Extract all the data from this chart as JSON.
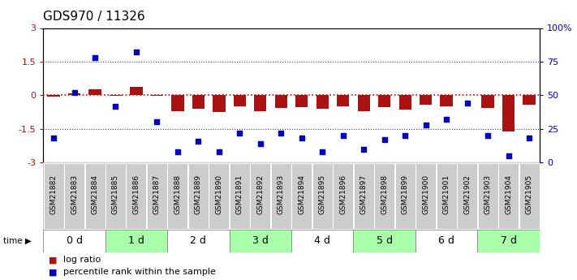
{
  "title": "GDS970 / 11326",
  "samples": [
    "GSM21882",
    "GSM21883",
    "GSM21884",
    "GSM21885",
    "GSM21886",
    "GSM21887",
    "GSM21888",
    "GSM21889",
    "GSM21890",
    "GSM21891",
    "GSM21892",
    "GSM21893",
    "GSM21894",
    "GSM21895",
    "GSM21896",
    "GSM21897",
    "GSM21898",
    "GSM21899",
    "GSM21900",
    "GSM21901",
    "GSM21902",
    "GSM21903",
    "GSM21904",
    "GSM21905"
  ],
  "log_ratio": [
    -0.05,
    0.1,
    0.28,
    -0.04,
    0.38,
    -0.04,
    -0.72,
    -0.6,
    -0.75,
    -0.5,
    -0.72,
    -0.58,
    -0.52,
    -0.62,
    -0.5,
    -0.7,
    -0.53,
    -0.65,
    -0.42,
    -0.48,
    0.01,
    -0.58,
    -1.62,
    -0.42
  ],
  "percentile_rank": [
    18,
    52,
    78,
    42,
    82,
    30,
    8,
    16,
    8,
    22,
    14,
    22,
    18,
    8,
    20,
    10,
    17,
    20,
    28,
    32,
    44,
    20,
    5,
    18
  ],
  "time_groups": [
    {
      "label": "0 d",
      "start": 0,
      "end": 2,
      "color": "#ffffff"
    },
    {
      "label": "1 d",
      "start": 2,
      "end": 5,
      "color": "#aaffaa"
    },
    {
      "label": "2 d",
      "start": 5,
      "end": 8,
      "color": "#ffffff"
    },
    {
      "label": "3 d",
      "start": 8,
      "end": 11,
      "color": "#aaffaa"
    },
    {
      "label": "4 d",
      "start": 11,
      "end": 14,
      "color": "#ffffff"
    },
    {
      "label": "5 d",
      "start": 14,
      "end": 17,
      "color": "#aaffaa"
    },
    {
      "label": "6 d",
      "start": 17,
      "end": 20,
      "color": "#ffffff"
    },
    {
      "label": "7 d",
      "start": 20,
      "end": 24,
      "color": "#aaffaa"
    }
  ],
  "time_groups_equal": [
    {
      "label": "0 d",
      "idx": 0,
      "color": "#ffffff"
    },
    {
      "label": "1 d",
      "idx": 1,
      "color": "#aaffaa"
    },
    {
      "label": "2 d",
      "idx": 2,
      "color": "#ffffff"
    },
    {
      "label": "3 d",
      "idx": 3,
      "color": "#aaffaa"
    },
    {
      "label": "4 d",
      "idx": 4,
      "color": "#ffffff"
    },
    {
      "label": "5 d",
      "idx": 5,
      "color": "#aaffaa"
    },
    {
      "label": "6 d",
      "idx": 6,
      "color": "#ffffff"
    },
    {
      "label": "7 d",
      "idx": 7,
      "color": "#aaffaa"
    }
  ],
  "ylim": [
    -3,
    3
  ],
  "yticks_left": [
    -3,
    -1.5,
    0,
    1.5,
    3
  ],
  "ytick_labels_left": [
    "-3",
    "-1.5",
    "0",
    "1.5",
    "3"
  ],
  "yticks_right_pct": [
    0,
    25,
    50,
    75,
    100
  ],
  "ytick_labels_right": [
    "0",
    "25",
    "50",
    "75",
    "100%"
  ],
  "bar_color": "#aa1111",
  "scatter_color": "#0000bb",
  "dotted_gray": "#444444",
  "zero_line_color": "#cc0000",
  "bg_color": "#ffffff",
  "sample_box_color": "#cccccc",
  "title_fontsize": 11,
  "tick_fontsize": 8,
  "sample_fontsize": 6.5,
  "time_fontsize": 9,
  "legend_fontsize": 8
}
